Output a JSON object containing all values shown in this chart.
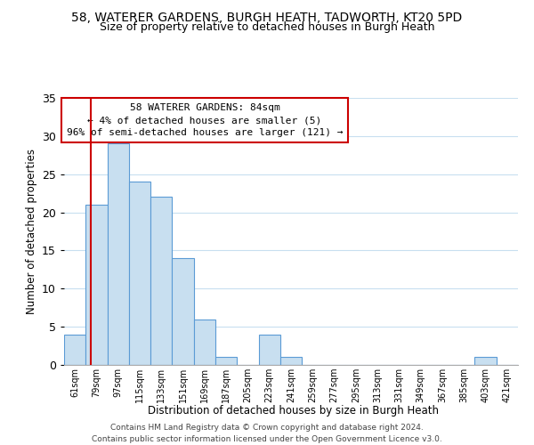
{
  "title": "58, WATERER GARDENS, BURGH HEATH, TADWORTH, KT20 5PD",
  "subtitle": "Size of property relative to detached houses in Burgh Heath",
  "xlabel": "Distribution of detached houses by size in Burgh Heath",
  "ylabel": "Number of detached properties",
  "bins": [
    "61sqm",
    "79sqm",
    "97sqm",
    "115sqm",
    "133sqm",
    "151sqm",
    "169sqm",
    "187sqm",
    "205sqm",
    "223sqm",
    "241sqm",
    "259sqm",
    "277sqm",
    "295sqm",
    "313sqm",
    "331sqm",
    "349sqm",
    "367sqm",
    "385sqm",
    "403sqm",
    "421sqm"
  ],
  "values": [
    4,
    21,
    29,
    24,
    22,
    14,
    6,
    1,
    0,
    4,
    1,
    0,
    0,
    0,
    0,
    0,
    0,
    0,
    0,
    1,
    0
  ],
  "bar_color": "#c8dff0",
  "bar_edge_color": "#5b9bd5",
  "annotation_line1": "58 WATERER GARDENS: 84sqm",
  "annotation_line2": "← 4% of detached houses are smaller (5)",
  "annotation_line3": "96% of semi-detached houses are larger (121) →",
  "annotation_box_edge_color": "#cc0000",
  "annotation_box_text_color": "#000000",
  "marker_line_color": "#cc0000",
  "ylim": [
    0,
    35
  ],
  "yticks": [
    0,
    5,
    10,
    15,
    20,
    25,
    30,
    35
  ],
  "footer_line1": "Contains HM Land Registry data © Crown copyright and database right 2024.",
  "footer_line2": "Contains public sector information licensed under the Open Government Licence v3.0.",
  "bg_color": "#ffffff",
  "grid_color": "#c8dff0"
}
